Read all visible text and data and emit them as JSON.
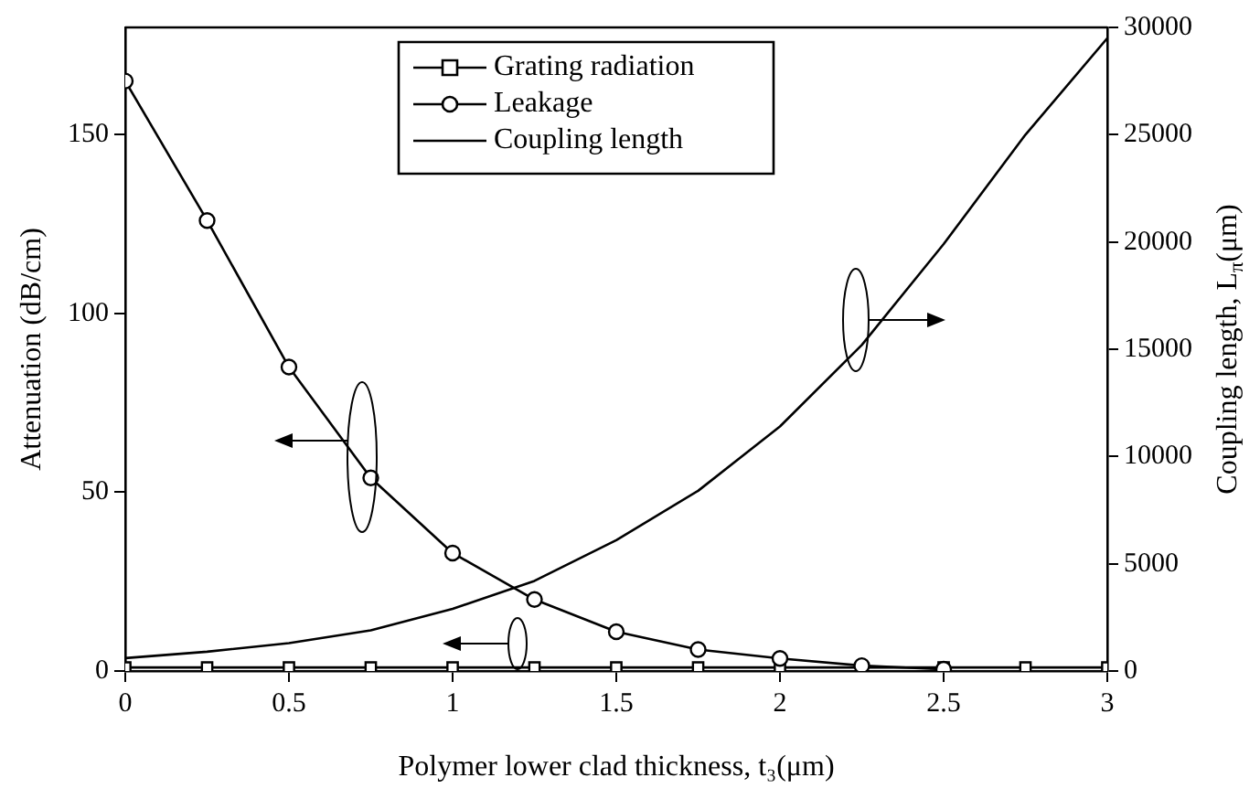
{
  "chart_data": {
    "type": "line",
    "xlabel": "Polymer lower clad thickness, t₃(μm)",
    "ylabel": "Attenuation (dB/cm)",
    "y2label": "Coupling length, L$_{π}$(μm)",
    "xlim": [
      0,
      3
    ],
    "xticks": [
      0,
      0.5,
      1,
      1.5,
      2,
      2.5,
      3
    ],
    "ylim": [
      0,
      180
    ],
    "yticks": [
      0,
      50,
      100,
      150
    ],
    "y2lim": [
      0,
      30000
    ],
    "y2ticks": [
      0,
      5000,
      10000,
      15000,
      20000,
      25000,
      30000
    ],
    "grid": false,
    "legend": "top",
    "series": [
      {
        "name": "Grating radiation",
        "color": "#000000",
        "marker": "square",
        "x": [
          0,
          0.25,
          0.5,
          0.75,
          1,
          1.25,
          1.5,
          1.75,
          2,
          2.25,
          2.5,
          2.75,
          3
        ],
        "values": [
          1,
          1,
          1,
          1,
          1,
          1,
          1,
          1,
          1,
          1,
          1,
          1,
          1
        ]
      },
      {
        "name": "Leakage",
        "color": "#000000",
        "marker": "circle",
        "x": [
          0,
          0.25,
          0.5,
          0.75,
          1,
          1.25,
          1.5,
          1.75,
          2,
          2.25,
          2.5
        ],
        "values": [
          165,
          126,
          85,
          54,
          33,
          20,
          11,
          6,
          3.5,
          1.5,
          0.5
        ]
      },
      {
        "name": "Coupling length",
        "color": "#000000",
        "marker": "none",
        "axis": "y2",
        "x": [
          0,
          0.25,
          0.5,
          0.75,
          1,
          1.25,
          1.5,
          1.75,
          2,
          2.25,
          2.5,
          2.75,
          3
        ],
        "values": [
          600,
          900,
          1300,
          1900,
          2900,
          4200,
          6100,
          8400,
          11400,
          15200,
          19900,
          25000,
          29500
        ]
      }
    ]
  }
}
